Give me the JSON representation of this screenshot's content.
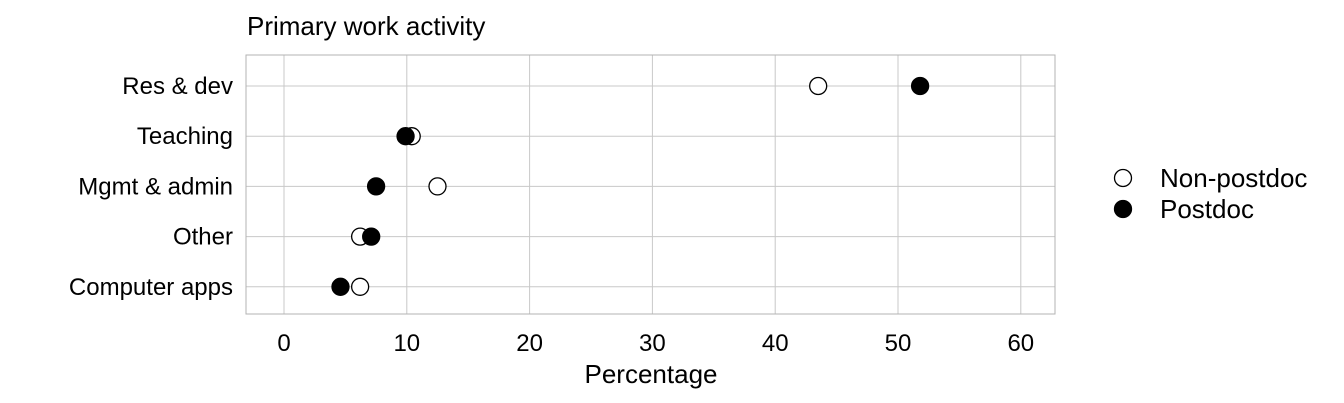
{
  "chart_data": {
    "type": "scatter",
    "title": "Primary work activity",
    "xlabel": "Percentage",
    "ylabel": "",
    "xlim": [
      -3,
      63
    ],
    "xticks": [
      0,
      10,
      20,
      30,
      40,
      50,
      60
    ],
    "xtick_labels": [
      "0",
      "10",
      "20",
      "30",
      "40",
      "50",
      "60"
    ],
    "categories": [
      "Res & dev",
      "Teaching",
      "Mgmt & admin",
      "Other",
      "Computer apps"
    ],
    "series": [
      {
        "name": "Non-postdoc",
        "marker": "open-circle",
        "color": "#ffffff",
        "stroke": "#000000",
        "values": [
          43.5,
          10.4,
          12.5,
          6.2,
          6.2
        ]
      },
      {
        "name": "Postdoc",
        "marker": "filled-circle",
        "color": "#000000",
        "stroke": "#000000",
        "values": [
          51.8,
          9.9,
          7.5,
          7.1,
          4.6
        ]
      }
    ],
    "grid": true,
    "legend_position": "right"
  }
}
